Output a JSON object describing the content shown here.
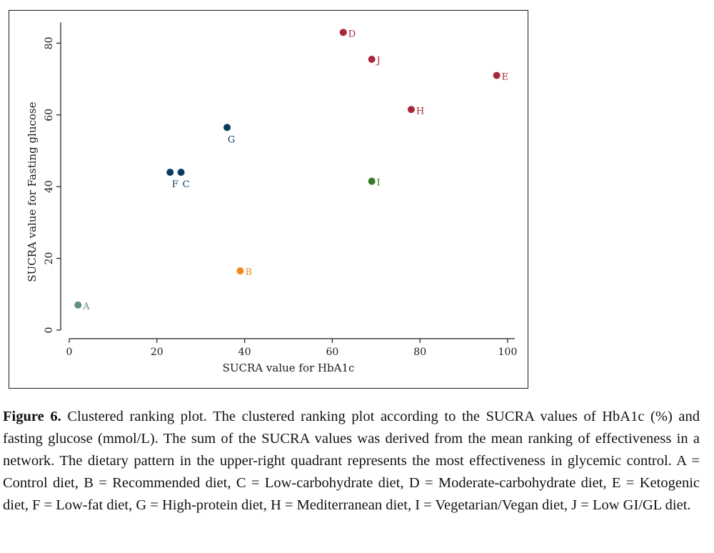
{
  "chart_data": {
    "type": "scatter",
    "xlabel": "SUCRA value for HbA1c",
    "ylabel": "SUCRA value for Fasting glucose",
    "xlim": [
      0,
      100
    ],
    "ylim": [
      0,
      85
    ],
    "xticks": [
      0,
      20,
      40,
      60,
      80,
      100
    ],
    "yticks": [
      0,
      20,
      40,
      60,
      80
    ],
    "grid": false,
    "points": [
      {
        "label": "A",
        "x": 2,
        "y": 7,
        "color": "#5e8f82"
      },
      {
        "label": "B",
        "x": 39,
        "y": 16.5,
        "color": "#f08a1c"
      },
      {
        "label": "C",
        "x": 25.5,
        "y": 44,
        "color": "#0b3b5e"
      },
      {
        "label": "D",
        "x": 62.5,
        "y": 83,
        "color": "#a8283a"
      },
      {
        "label": "E",
        "x": 97.5,
        "y": 71,
        "color": "#a8283a"
      },
      {
        "label": "F",
        "x": 23,
        "y": 44,
        "color": "#0b3b5e"
      },
      {
        "label": "G",
        "x": 36,
        "y": 56.5,
        "color": "#0b3b5e"
      },
      {
        "label": "H",
        "x": 78,
        "y": 61.5,
        "color": "#a8283a"
      },
      {
        "label": "I",
        "x": 69,
        "y": 41.5,
        "color": "#3a7a2a"
      },
      {
        "label": "J",
        "x": 69,
        "y": 75.5,
        "color": "#a8283a"
      }
    ]
  },
  "caption": {
    "label": "Figure 6.",
    "text": "Clustered ranking plot. The clustered ranking plot according to the SUCRA values of HbA1c (%) and fasting glucose (mmol/L). The sum of the SUCRA values was derived from the mean ranking of effectiveness in a network. The dietary pattern in the upper-right quadrant represents the most effectiveness in glycemic control. A = Control diet, B = Recommended diet, C = Low-carbohydrate diet, D = Moderate-carbohydrate diet, E = Ketogenic diet, F = Low-fat diet, G = High-protein diet, H = Mediterranean diet, I = Vegetarian/Vegan diet, J = Low GI/GL diet."
  }
}
